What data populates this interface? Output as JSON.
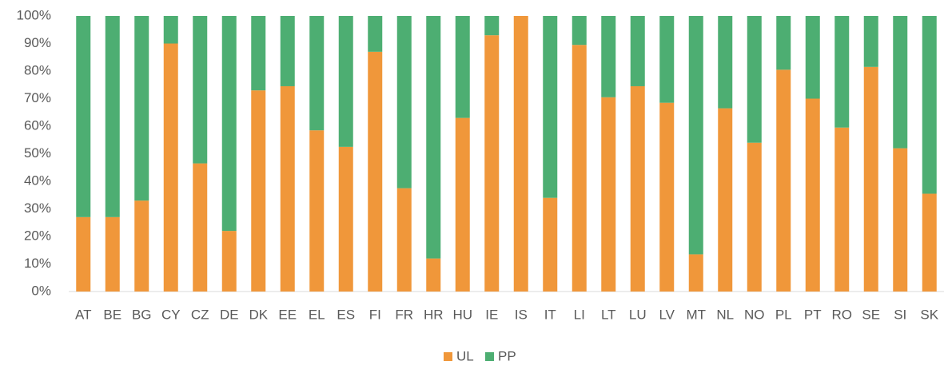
{
  "chart_data": {
    "type": "stacked_bar",
    "categories": [
      "AT",
      "BE",
      "BG",
      "CY",
      "CZ",
      "DE",
      "DK",
      "EE",
      "EL",
      "ES",
      "FI",
      "FR",
      "HR",
      "HU",
      "IE",
      "IS",
      "IT",
      "LI",
      "LT",
      "LU",
      "LV",
      "MT",
      "NL",
      "NO",
      "PL",
      "PT",
      "RO",
      "SE",
      "SI",
      "SK"
    ],
    "series": [
      {
        "name": "UL",
        "color": "#f0973a",
        "values": [
          27,
          27,
          33,
          90,
          46.5,
          22,
          73,
          74.5,
          58.5,
          52.5,
          87,
          37.5,
          12,
          63,
          93,
          100,
          34,
          89.5,
          70.5,
          74.5,
          68.5,
          13.5,
          66.5,
          54,
          80.5,
          70,
          59.5,
          81.5,
          52,
          35.5
        ]
      },
      {
        "name": "PP",
        "color": "#4dae72",
        "values": [
          73,
          73,
          67,
          10,
          53.5,
          78,
          27,
          25.5,
          41.5,
          47.5,
          13,
          62.5,
          88,
          37,
          7,
          0,
          66,
          10.5,
          29.5,
          25.5,
          31.5,
          86.5,
          33.5,
          46,
          19.5,
          30,
          40.5,
          18.5,
          48,
          64.5
        ]
      }
    ],
    "ylim": [
      0,
      100
    ],
    "yticks": [
      {
        "value": 0,
        "label": "0%"
      },
      {
        "value": 10,
        "label": "10%"
      },
      {
        "value": 20,
        "label": "20%"
      },
      {
        "value": 30,
        "label": "30%"
      },
      {
        "value": 40,
        "label": "40%"
      },
      {
        "value": 50,
        "label": "50%"
      },
      {
        "value": 60,
        "label": "60%"
      },
      {
        "value": 70,
        "label": "70%"
      },
      {
        "value": 80,
        "label": "80%"
      },
      {
        "value": 90,
        "label": "90%"
      },
      {
        "value": 100,
        "label": "100%"
      }
    ],
    "legend": "bottom"
  }
}
